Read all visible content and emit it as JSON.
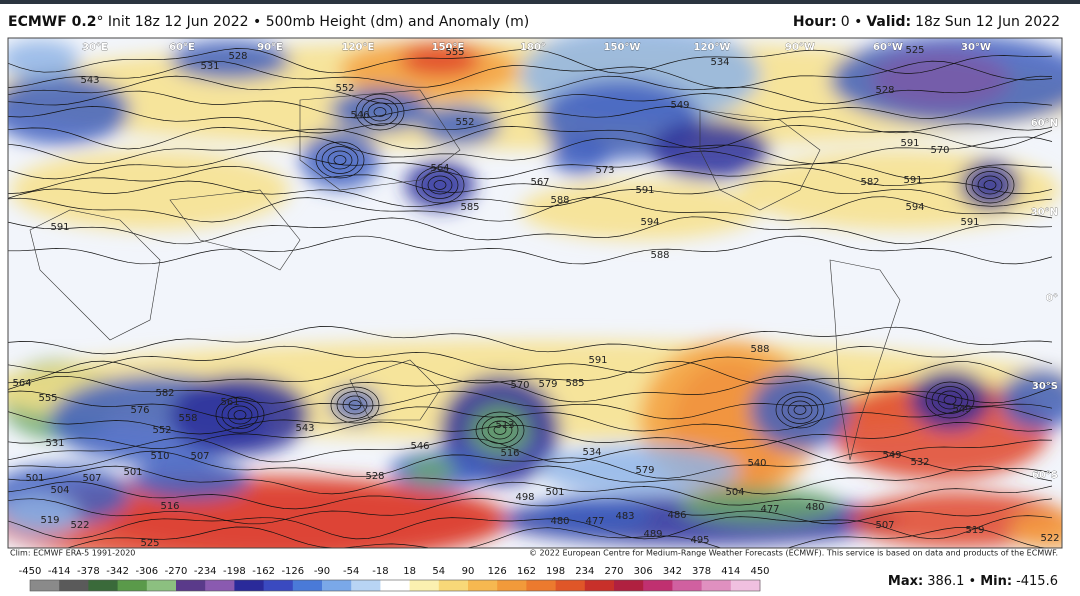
{
  "header": {
    "title_bold": "ECMWF 0.2",
    "title_rest": "° Init 18z 12 Jun 2022 • 500mb Height (dm) and Anomaly (m)",
    "hour_label": "Hour:",
    "hour_value": "0 •",
    "valid_label": "Valid:",
    "valid_value": "18z Sun 12 Jun 2022"
  },
  "map": {
    "lon_labels": [
      "30°E",
      "60°E",
      "90°E",
      "120°E",
      "150°E",
      "180°",
      "150°W",
      "120°W",
      "90°W",
      "60°W",
      "30°W"
    ],
    "lat_labels": [
      "60°N",
      "30°N",
      "0°",
      "30°S",
      "60°S"
    ],
    "contour_labels": [
      "543",
      "531",
      "528",
      "555",
      "534",
      "525",
      "528",
      "552",
      "546",
      "549",
      "552",
      "564",
      "567",
      "573",
      "591",
      "594",
      "588",
      "585",
      "582",
      "591",
      "594",
      "591",
      "570",
      "591",
      "588",
      "591",
      "588",
      "591",
      "564",
      "555",
      "582",
      "576",
      "558",
      "561",
      "552",
      "510",
      "507",
      "531",
      "501",
      "507",
      "501",
      "504",
      "516",
      "519",
      "522",
      "525",
      "543",
      "546",
      "528",
      "513",
      "516",
      "570",
      "579",
      "585",
      "534",
      "579",
      "540",
      "498",
      "501",
      "480",
      "477",
      "483",
      "486",
      "489",
      "495",
      "504",
      "480",
      "477",
      "507",
      "519",
      "522",
      "549",
      "549",
      "532"
    ]
  },
  "footer": {
    "climo": "Clim: ECMWF ERA-5 1991-2020",
    "copyright": "© 2022 European Centre for Medium-Range Weather Forecasts (ECMWF). This service is based on data and products of the ECMWF."
  },
  "colorbar": {
    "ticks": [
      "-450",
      "-414",
      "-378",
      "-342",
      "-306",
      "-270",
      "-234",
      "-198",
      "-162",
      "-126",
      "-90",
      "-54",
      "-18",
      "18",
      "54",
      "90",
      "126",
      "162",
      "198",
      "234",
      "270",
      "306",
      "342",
      "378",
      "414",
      "450"
    ],
    "max_label": "Max:",
    "max_value": "386.1 •",
    "min_label": "Min:",
    "min_value": "-415.6"
  }
}
